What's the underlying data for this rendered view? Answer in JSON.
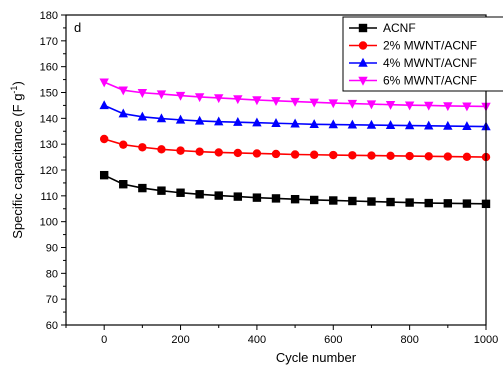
{
  "chart_data": {
    "type": "line",
    "panel_label": "d",
    "xlabel": "Cycle number",
    "ylabel": "Specific capacitance (F g",
    "ylabel_sup": "-1",
    "ylabel_end": ")",
    "xlim": [
      -100,
      1000
    ],
    "ylim": [
      60,
      180
    ],
    "x_ticks": [
      0,
      200,
      400,
      600,
      800,
      1000
    ],
    "y_ticks": [
      60,
      70,
      80,
      90,
      100,
      110,
      120,
      130,
      140,
      150,
      160,
      170,
      180
    ],
    "grid": false,
    "legend_position": "top-right",
    "x": [
      0,
      50,
      100,
      150,
      200,
      250,
      300,
      350,
      400,
      450,
      500,
      550,
      600,
      650,
      700,
      750,
      800,
      850,
      900,
      950,
      1000
    ],
    "series": [
      {
        "name": "ACNF",
        "color": "#000000",
        "marker": "square",
        "values": [
          118,
          114.5,
          113,
          112,
          111.2,
          110.6,
          110.1,
          109.7,
          109.3,
          109,
          108.7,
          108.4,
          108.2,
          108,
          107.8,
          107.6,
          107.4,
          107.2,
          107.1,
          107,
          106.9
        ]
      },
      {
        "name": "2% MWNT/ACNF",
        "color": "#ff0000",
        "marker": "circle",
        "values": [
          132,
          129.8,
          128.8,
          128,
          127.5,
          127.1,
          126.8,
          126.6,
          126.4,
          126.2,
          126,
          125.9,
          125.8,
          125.7,
          125.6,
          125.5,
          125.4,
          125.3,
          125.2,
          125.1,
          125
        ]
      },
      {
        "name": "4% MWNT/ACNF",
        "color": "#0000ff",
        "marker": "triangle-up",
        "values": [
          145,
          141.8,
          140.6,
          139.9,
          139.4,
          139,
          138.7,
          138.5,
          138.3,
          138.1,
          137.9,
          137.7,
          137.6,
          137.5,
          137.4,
          137.3,
          137.2,
          137.1,
          137,
          136.9,
          136.8
        ]
      },
      {
        "name": "6% MWNT/ACNF",
        "color": "#ff00ff",
        "marker": "triangle-down",
        "values": [
          154,
          150.9,
          149.9,
          149.4,
          148.8,
          148.3,
          147.9,
          147.5,
          147.1,
          146.8,
          146.5,
          146.2,
          145.9,
          145.7,
          145.5,
          145.3,
          145.1,
          145,
          144.8,
          144.7,
          144.6
        ]
      }
    ]
  }
}
